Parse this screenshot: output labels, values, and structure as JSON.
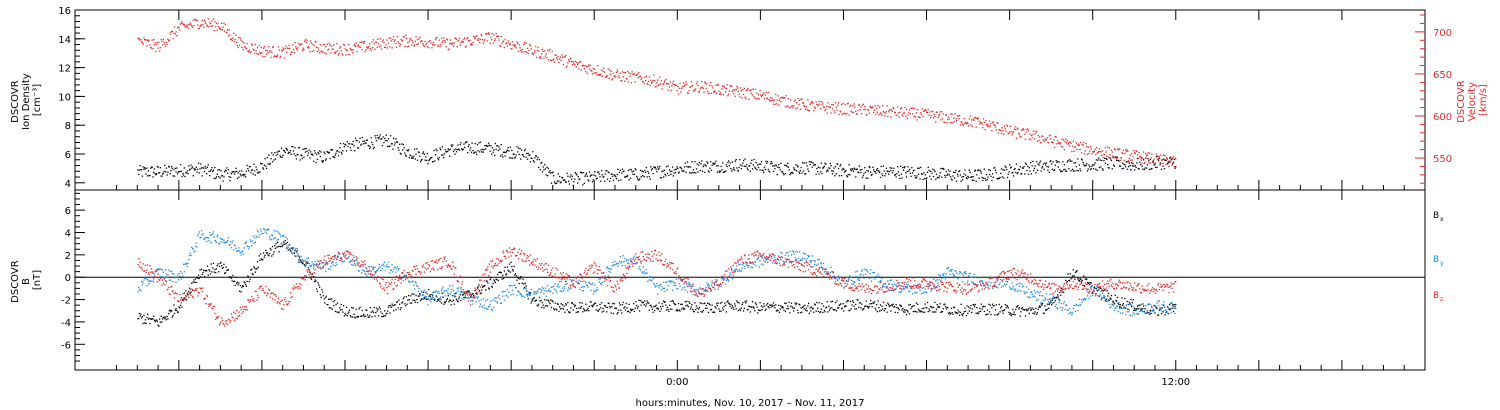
{
  "chart_data": [
    {
      "type": "scatter",
      "panel": "plasma",
      "ylabel_left": [
        "DSCOVR",
        "Ion Density",
        "[cm⁻³]"
      ],
      "ylabel_right": [
        "DSCOVR",
        "Velocity",
        "[km/s]"
      ],
      "ylim_left": [
        3.5,
        16.0
      ],
      "ylim_right": [
        512,
        726
      ],
      "yticks_left": [
        "4",
        "6",
        "8",
        "10",
        "12",
        "14",
        "16"
      ],
      "yticks_right": [
        "550",
        "600",
        "650",
        "700"
      ],
      "colors": {
        "density": "#000000",
        "velocity": "#e8292b"
      },
      "series": [
        {
          "key": "density",
          "axis": "left",
          "x": [
            -13.0,
            -12.5,
            -12.0,
            -11.5,
            -11.0,
            -10.5,
            -10.0,
            -9.5,
            -9.0,
            -8.5,
            -8.0,
            -7.5,
            -7.0,
            -6.5,
            -6.0,
            -5.5,
            -5.0,
            -4.5,
            -4.0,
            -3.5,
            -3.0,
            -2.5,
            -2.0,
            -1.5,
            -1.0,
            -0.5,
            0.0,
            0.5,
            1.0,
            1.5,
            2.0,
            2.5,
            3.0,
            3.5,
            4.0,
            4.5,
            5.0,
            5.5,
            6.0,
            6.5,
            7.0,
            7.5,
            8.0,
            8.5,
            9.0,
            9.5,
            10.0,
            10.5,
            11.0,
            11.5,
            12.0
          ],
          "values": [
            4.8,
            4.8,
            4.9,
            5.0,
            4.6,
            4.7,
            5.2,
            6.3,
            6.0,
            5.8,
            6.6,
            6.8,
            7.0,
            6.2,
            5.8,
            6.3,
            6.5,
            6.4,
            6.2,
            5.9,
            4.3,
            4.3,
            4.4,
            4.6,
            4.6,
            4.8,
            5.0,
            5.2,
            5.2,
            5.3,
            5.2,
            5.0,
            5.1,
            5.0,
            4.9,
            4.8,
            4.8,
            4.8,
            4.7,
            4.6,
            4.5,
            4.6,
            4.9,
            5.1,
            5.2,
            5.3,
            5.3,
            5.4,
            5.3,
            5.4,
            5.5
          ]
        },
        {
          "key": "velocity",
          "axis": "right",
          "x": [
            -13.0,
            -12.5,
            -12.0,
            -11.5,
            -11.0,
            -10.5,
            -10.0,
            -9.5,
            -9.0,
            -8.5,
            -8.0,
            -7.5,
            -7.0,
            -6.5,
            -6.0,
            -5.5,
            -5.0,
            -4.5,
            -4.0,
            -3.5,
            -3.0,
            -2.5,
            -2.0,
            -1.5,
            -1.0,
            -0.5,
            0.0,
            0.5,
            1.0,
            1.5,
            2.0,
            2.5,
            3.0,
            3.5,
            4.0,
            4.5,
            5.0,
            5.5,
            6.0,
            6.5,
            7.0,
            7.5,
            8.0,
            8.5,
            9.0,
            9.5,
            10.0,
            10.5,
            11.0,
            11.5,
            12.0
          ],
          "values": [
            690,
            683,
            705,
            712,
            708,
            685,
            678,
            676,
            685,
            681,
            680,
            683,
            688,
            690,
            689,
            686,
            690,
            694,
            686,
            678,
            672,
            662,
            656,
            649,
            646,
            642,
            633,
            636,
            632,
            629,
            625,
            619,
            614,
            611,
            609,
            608,
            606,
            604,
            602,
            598,
            595,
            590,
            582,
            578,
            571,
            565,
            560,
            556,
            553,
            549,
            545
          ]
        }
      ]
    },
    {
      "type": "scatter",
      "panel": "magnetic-field",
      "ylabel_left": [
        "DSCOVR",
        "B",
        "[nT]"
      ],
      "ylim": [
        -8.3,
        7.8
      ],
      "yticks": [
        "-6",
        "-4",
        "-2",
        "0",
        "2",
        "4",
        "6"
      ],
      "zero_line": true,
      "colors": {
        "bx": "#000000",
        "by": "#1f8ce0",
        "bz": "#e8292b"
      },
      "legend": [
        {
          "key": "bx",
          "label": "B",
          "sub": "x"
        },
        {
          "key": "by",
          "label": "B",
          "sub": "y"
        },
        {
          "key": "bz",
          "label": "B",
          "sub": "z"
        }
      ],
      "series": [
        {
          "key": "bx",
          "x": [
            -13.0,
            -12.5,
            -12.0,
            -11.5,
            -11.0,
            -10.5,
            -10.0,
            -9.5,
            -9.0,
            -8.5,
            -8.0,
            -7.5,
            -7.0,
            -6.5,
            -6.0,
            -5.5,
            -5.0,
            -4.5,
            -4.0,
            -3.5,
            -3.0,
            -2.5,
            -2.0,
            -1.5,
            -1.0,
            -0.5,
            0.0,
            0.5,
            1.0,
            1.5,
            2.0,
            2.5,
            3.0,
            3.5,
            4.0,
            4.5,
            5.0,
            5.5,
            6.0,
            6.5,
            7.0,
            7.5,
            8.0,
            8.5,
            9.0,
            9.5,
            10.0,
            10.5,
            11.0,
            11.5,
            12.0
          ],
          "values": [
            -3.5,
            -4.0,
            -2.5,
            0.5,
            1.0,
            -1.0,
            2.0,
            3.0,
            1.5,
            -2.0,
            -3.0,
            -3.2,
            -3.0,
            -2.0,
            -1.5,
            -2.0,
            -1.5,
            -0.5,
            1.0,
            -2.0,
            -2.5,
            -2.7,
            -2.6,
            -2.8,
            -2.5,
            -2.6,
            -2.5,
            -2.7,
            -2.6,
            -2.5,
            -2.7,
            -2.6,
            -2.8,
            -2.6,
            -2.5,
            -2.4,
            -2.6,
            -2.8,
            -2.6,
            -2.8,
            -2.9,
            -2.8,
            -2.9,
            -3.0,
            -2.5,
            0.5,
            -1.0,
            -2.0,
            -2.5,
            -3.0,
            -2.6
          ]
        },
        {
          "key": "by",
          "x": [
            -13.0,
            -12.5,
            -12.0,
            -11.5,
            -11.0,
            -10.5,
            -10.0,
            -9.5,
            -9.0,
            -8.5,
            -8.0,
            -7.5,
            -7.0,
            -6.5,
            -6.0,
            -5.5,
            -5.0,
            -4.5,
            -4.0,
            -3.5,
            -3.0,
            -2.5,
            -2.0,
            -1.5,
            -1.0,
            -0.5,
            0.0,
            0.5,
            1.0,
            1.5,
            2.0,
            2.5,
            3.0,
            3.5,
            4.0,
            4.5,
            5.0,
            5.5,
            6.0,
            6.5,
            7.0,
            7.5,
            8.0,
            8.5,
            9.0,
            9.5,
            10.0,
            10.5,
            11.0,
            11.5,
            12.0
          ],
          "values": [
            -1.0,
            0.5,
            0.0,
            3.8,
            3.5,
            2.5,
            4.2,
            3.5,
            1.5,
            1.0,
            2.0,
            0.5,
            1.0,
            0.0,
            -2.0,
            -1.0,
            -1.8,
            -2.5,
            -1.0,
            -1.5,
            -1.0,
            -0.5,
            -1.0,
            1.5,
            1.5,
            -1.0,
            -0.5,
            -1.2,
            -0.5,
            1.0,
            1.5,
            1.8,
            2.0,
            1.0,
            -0.5,
            0.5,
            -0.5,
            -1.0,
            -1.0,
            0.5,
            0.0,
            -0.5,
            -0.5,
            -1.5,
            -2.0,
            -3.0,
            -1.0,
            -2.5,
            -3.0,
            -2.5,
            -2.8
          ]
        },
        {
          "key": "bz",
          "x": [
            -13.0,
            -12.5,
            -12.0,
            -11.5,
            -11.0,
            -10.5,
            -10.0,
            -9.5,
            -9.0,
            -8.5,
            -8.0,
            -7.5,
            -7.0,
            -6.5,
            -6.0,
            -5.5,
            -5.0,
            -4.5,
            -4.0,
            -3.5,
            -3.0,
            -2.5,
            -2.0,
            -1.5,
            -1.0,
            -0.5,
            0.0,
            0.5,
            1.0,
            1.5,
            2.0,
            2.5,
            3.0,
            3.5,
            4.0,
            4.5,
            5.0,
            5.5,
            6.0,
            6.5,
            7.0,
            7.5,
            8.0,
            8.5,
            9.0,
            9.5,
            10.0,
            10.5,
            11.0,
            11.5,
            12.0
          ],
          "values": [
            1.5,
            0.0,
            -2.0,
            -1.0,
            -4.0,
            -3.0,
            -1.0,
            -2.5,
            0.0,
            1.5,
            2.0,
            1.0,
            -1.0,
            0.5,
            1.0,
            1.5,
            -2.0,
            1.0,
            2.5,
            1.5,
            0.5,
            -0.5,
            1.0,
            -1.0,
            1.8,
            2.0,
            0.5,
            -1.5,
            -0.5,
            1.5,
            2.0,
            1.5,
            1.0,
            0.5,
            -0.5,
            -1.0,
            -0.8,
            -0.5,
            -0.5,
            -0.8,
            -1.0,
            -0.5,
            0.5,
            0.0,
            -1.0,
            -0.5,
            -1.0,
            -0.5,
            -0.8,
            -1.0,
            -0.8
          ]
        }
      ]
    }
  ],
  "xaxis": {
    "xlim_hours": [
      -14.5,
      18.0
    ],
    "major_ticks_hours": [
      -12,
      -10,
      -8,
      -6,
      -4,
      -2,
      0,
      2,
      4,
      6,
      8,
      10,
      12,
      14,
      16
    ],
    "tick_labels": [
      {
        "hour": 0,
        "label": "0:00"
      },
      {
        "hour": 12,
        "label": "12:00"
      }
    ],
    "title": "hours:minutes, Nov. 10, 2017 – Nov. 11, 2017"
  }
}
